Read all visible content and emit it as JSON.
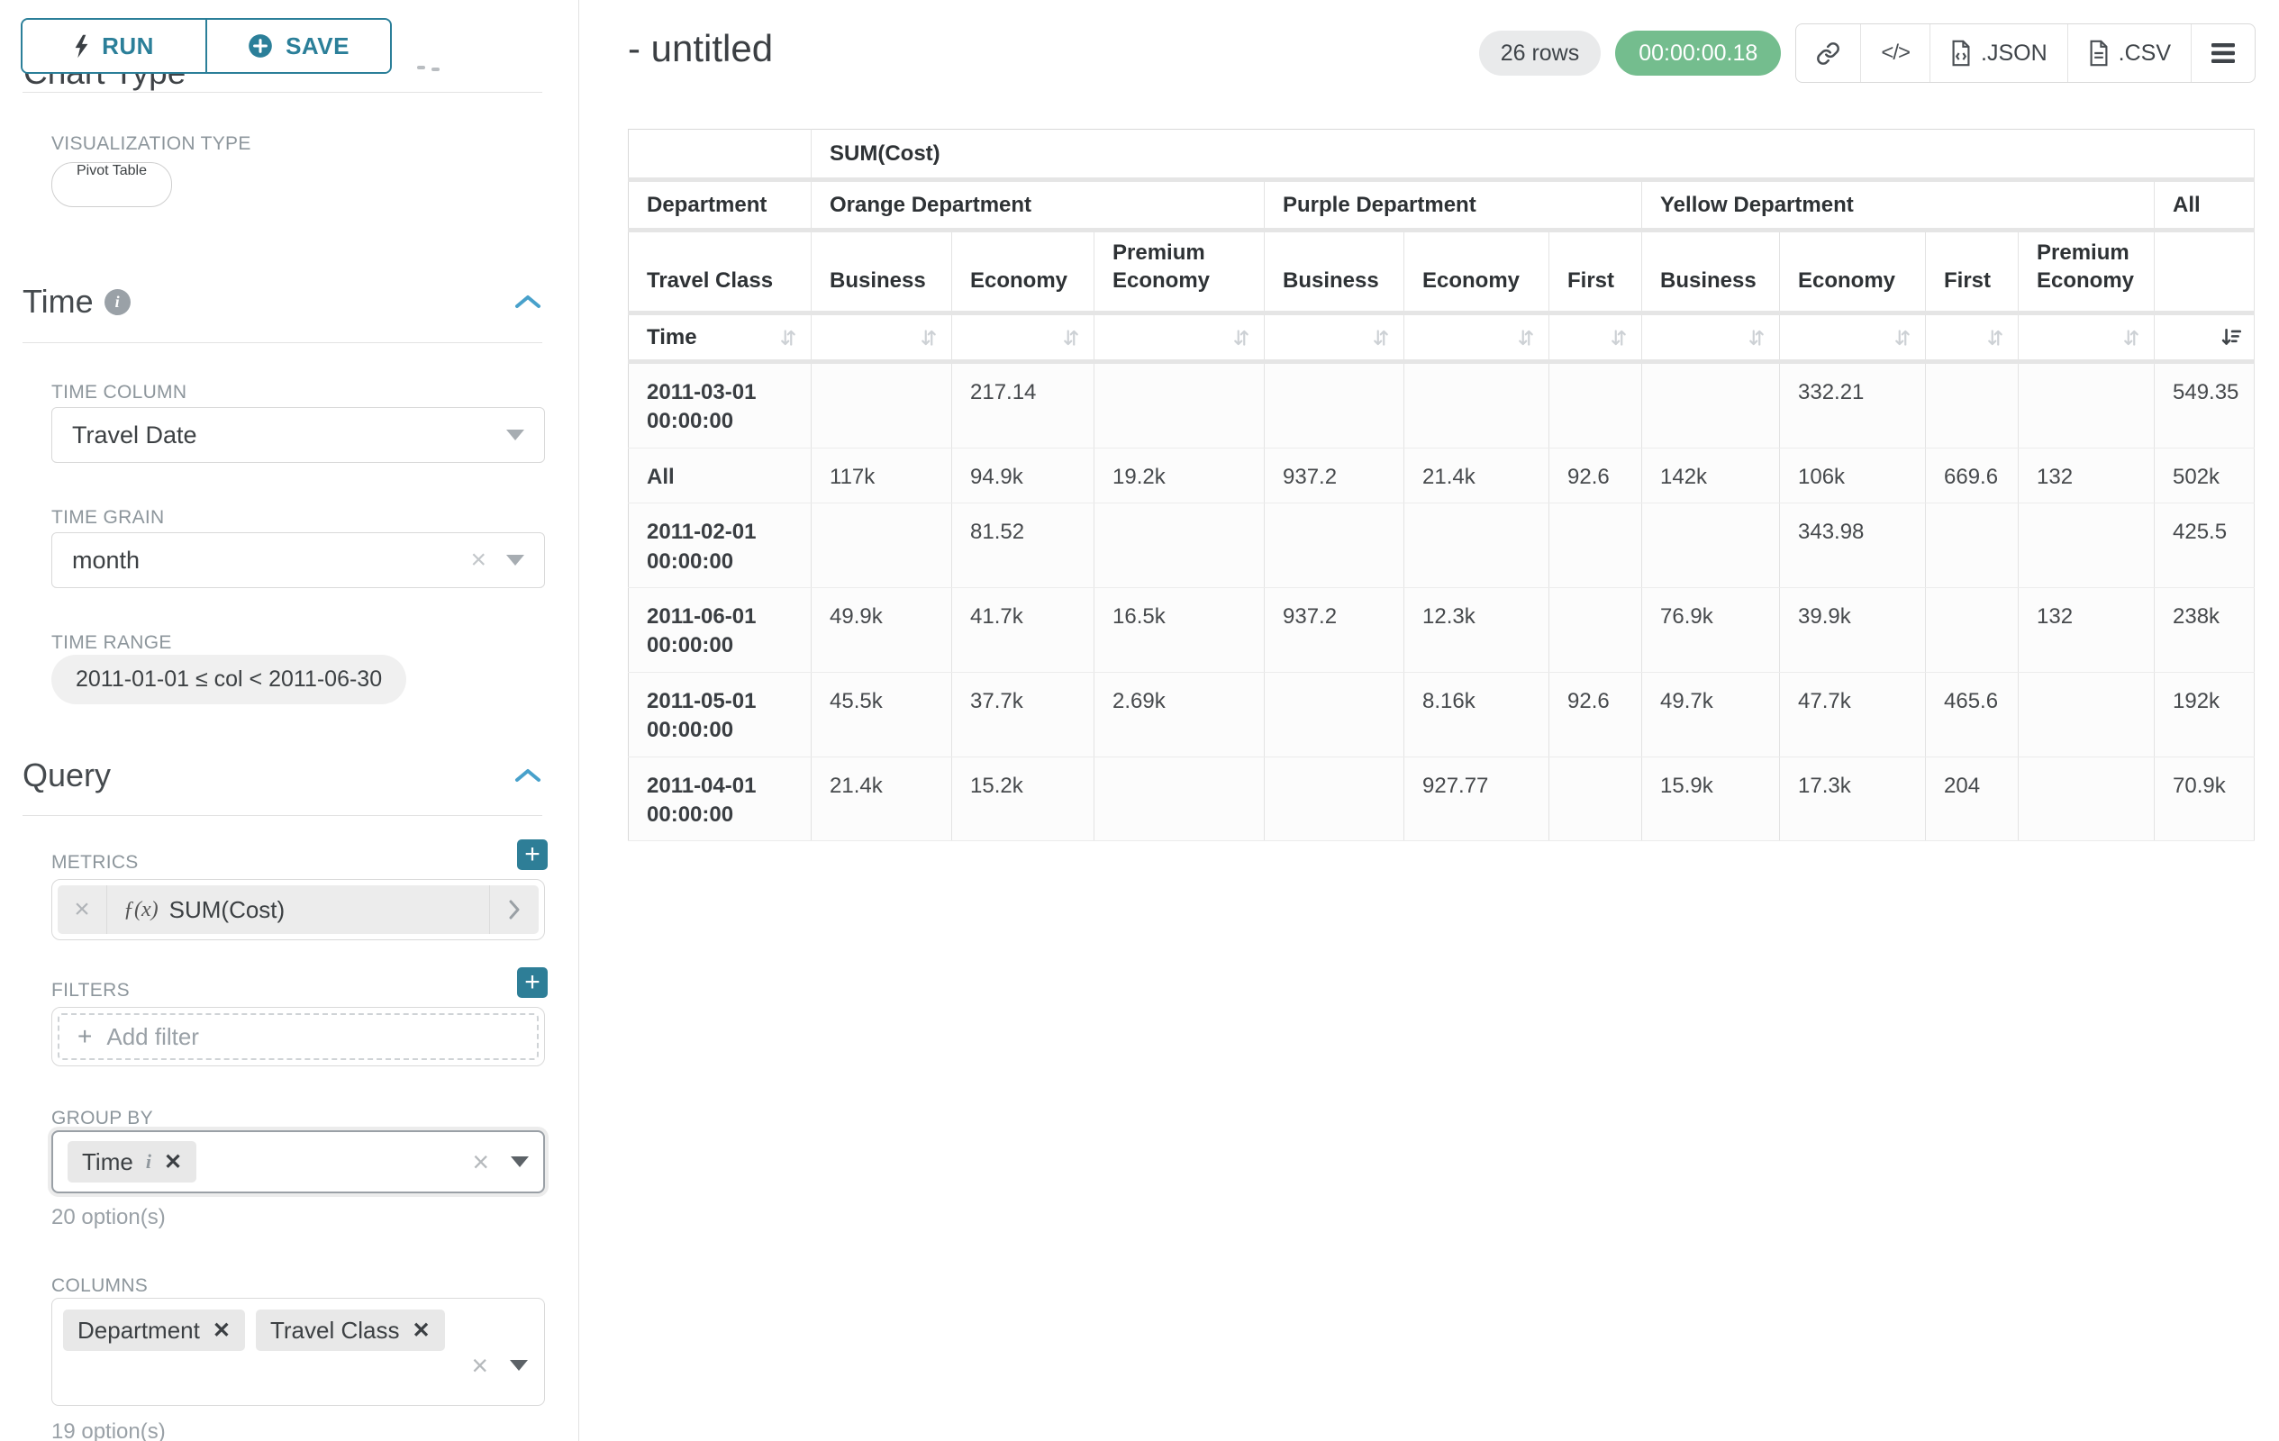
{
  "colors": {
    "accent_teal": "#2b7f99",
    "chevron_blue": "#48a1cb",
    "timer_green": "#74bd8e",
    "pill_gray": "#e9eaeb",
    "border_gray": "#d9d9d9"
  },
  "sidebar": {
    "run_label": "RUN",
    "save_label": "SAVE",
    "chart_type_heading": "Chart Type",
    "viz_type_label": "VISUALIZATION TYPE",
    "viz_type_value": "Pivot Table",
    "time": {
      "heading": "Time",
      "column_label": "TIME COLUMN",
      "column_value": "Travel Date",
      "grain_label": "TIME GRAIN",
      "grain_value": "month",
      "range_label": "TIME RANGE",
      "range_value": "2011-01-01 ≤ col < 2011-06-30"
    },
    "query": {
      "heading": "Query",
      "metrics_label": "METRICS",
      "metric_fx": "ƒ(x)",
      "metric_value": "SUM(Cost)",
      "filters_label": "FILTERS",
      "add_filter_label": "Add filter",
      "group_by_label": "GROUP BY",
      "group_by_tag_label": "Time",
      "group_by_options": "20 option(s)",
      "columns_label": "COLUMNS",
      "columns_tags": [
        "Department",
        "Travel Class"
      ],
      "columns_options": "19 option(s)"
    }
  },
  "header": {
    "title": "- untitled",
    "rows_badge": "26 rows",
    "timer": "00:00:00.18",
    "code_label": "</>",
    "json_label": ".JSON",
    "csv_label": ".CSV"
  },
  "table": {
    "metric_header": "SUM(Cost)",
    "department_label": "Department",
    "travel_class_label": "Travel Class",
    "time_label": "Time",
    "groups": [
      {
        "name": "Orange Department",
        "cols": [
          "Business",
          "Economy",
          "Premium Economy"
        ]
      },
      {
        "name": "Purple Department",
        "cols": [
          "Business",
          "Economy",
          "First"
        ]
      },
      {
        "name": "Yellow Department",
        "cols": [
          "Business",
          "Economy",
          "First",
          "Premium Economy"
        ]
      },
      {
        "name": "All",
        "cols": [
          ""
        ]
      }
    ],
    "rows": [
      {
        "label": "2011-03-01 00:00:00",
        "values": [
          "",
          "217.14",
          "",
          "",
          "",
          "",
          "",
          "332.21",
          "",
          "",
          "549.35"
        ]
      },
      {
        "label": "All",
        "values": [
          "117k",
          "94.9k",
          "19.2k",
          "937.2",
          "21.4k",
          "92.6",
          "142k",
          "106k",
          "669.6",
          "132",
          "502k"
        ]
      },
      {
        "label": "2011-02-01 00:00:00",
        "values": [
          "",
          "81.52",
          "",
          "",
          "",
          "",
          "",
          "343.98",
          "",
          "",
          "425.5"
        ]
      },
      {
        "label": "2011-06-01 00:00:00",
        "values": [
          "49.9k",
          "41.7k",
          "16.5k",
          "937.2",
          "12.3k",
          "",
          "76.9k",
          "39.9k",
          "",
          "132",
          "238k"
        ]
      },
      {
        "label": "2011-05-01 00:00:00",
        "values": [
          "45.5k",
          "37.7k",
          "2.69k",
          "",
          "8.16k",
          "92.6",
          "49.7k",
          "47.7k",
          "465.6",
          "",
          "192k"
        ]
      },
      {
        "label": "2011-04-01 00:00:00",
        "values": [
          "21.4k",
          "15.2k",
          "",
          "",
          "927.77",
          "",
          "15.9k",
          "17.3k",
          "204",
          "",
          "70.9k"
        ]
      }
    ]
  }
}
